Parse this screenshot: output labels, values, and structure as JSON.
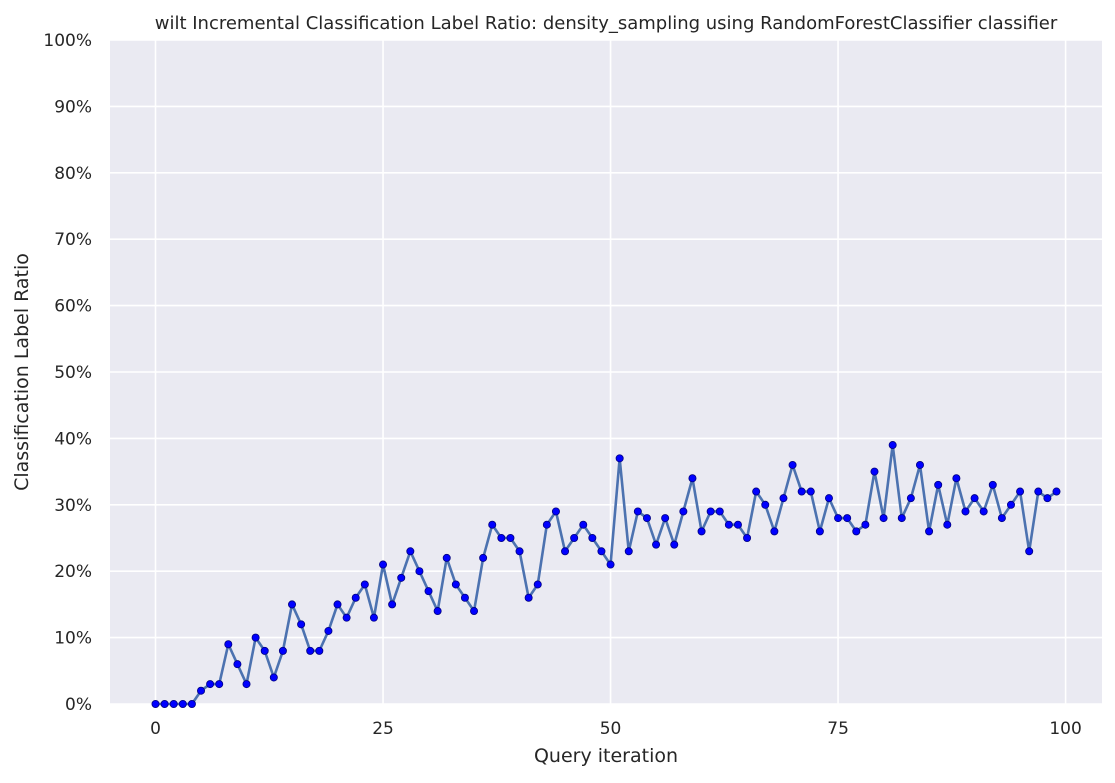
{
  "chart_data": {
    "type": "line",
    "title": "wilt Incremental Classification Label Ratio: density_sampling using RandomForestClassifier classifier",
    "xlabel": "Query iteration",
    "ylabel": "Classification Label Ratio",
    "xlim": [
      -5,
      104
    ],
    "ylim": [
      0,
      1
    ],
    "x_ticks": [
      0,
      25,
      50,
      75,
      100
    ],
    "y_ticks": [
      0,
      0.1,
      0.2,
      0.3,
      0.4,
      0.5,
      0.6,
      0.7,
      0.8,
      0.9,
      1.0
    ],
    "y_tick_labels": [
      "0%",
      "10%",
      "20%",
      "30%",
      "40%",
      "50%",
      "60%",
      "70%",
      "80%",
      "90%",
      "100%"
    ],
    "grid": true,
    "colors": {
      "background": "#eaeaf2",
      "grid": "#ffffff",
      "line": "#4c72b0",
      "marker": "#0000ff",
      "marker_edge": "#000080"
    },
    "series": [
      {
        "x": [
          0,
          1,
          2,
          3,
          4,
          5,
          6,
          7,
          8,
          9,
          10,
          11,
          12,
          13,
          14,
          15,
          16,
          17,
          18,
          19,
          20,
          21,
          22,
          23,
          24,
          25,
          26,
          27,
          28,
          29,
          30,
          31,
          32,
          33,
          34,
          35,
          36,
          37,
          38,
          39,
          40,
          41,
          42,
          43,
          44,
          45,
          46,
          47,
          48,
          49,
          50,
          51,
          52,
          53,
          54,
          55,
          56,
          57,
          58,
          59,
          60,
          61,
          62,
          63,
          64,
          65,
          66,
          67,
          68,
          69,
          70,
          71,
          72,
          73,
          74,
          75,
          76,
          77,
          78,
          79,
          80,
          81,
          82,
          83,
          84,
          85,
          86,
          87,
          88,
          89,
          90,
          91,
          92,
          93,
          94,
          95,
          96,
          97,
          98,
          99
        ],
        "values": [
          0,
          0,
          0,
          0,
          0,
          0.02,
          0.03,
          0.03,
          0.09,
          0.06,
          0.03,
          0.1,
          0.08,
          0.04,
          0.08,
          0.15,
          0.12,
          0.08,
          0.08,
          0.11,
          0.15,
          0.13,
          0.16,
          0.18,
          0.13,
          0.21,
          0.15,
          0.19,
          0.23,
          0.2,
          0.17,
          0.14,
          0.22,
          0.18,
          0.16,
          0.14,
          0.22,
          0.27,
          0.25,
          0.25,
          0.23,
          0.16,
          0.18,
          0.27,
          0.29,
          0.23,
          0.25,
          0.27,
          0.25,
          0.23,
          0.21,
          0.37,
          0.23,
          0.29,
          0.28,
          0.24,
          0.28,
          0.24,
          0.29,
          0.34,
          0.26,
          0.29,
          0.29,
          0.27,
          0.27,
          0.25,
          0.32,
          0.3,
          0.26,
          0.31,
          0.36,
          0.32,
          0.32,
          0.26,
          0.31,
          0.28,
          0.28,
          0.26,
          0.27,
          0.35,
          0.28,
          0.39,
          0.28,
          0.31,
          0.36,
          0.26,
          0.33,
          0.27,
          0.34,
          0.29,
          0.31,
          0.29,
          0.33,
          0.28,
          0.3,
          0.32,
          0.23,
          0.32,
          0.31,
          0.32
        ]
      }
    ]
  }
}
